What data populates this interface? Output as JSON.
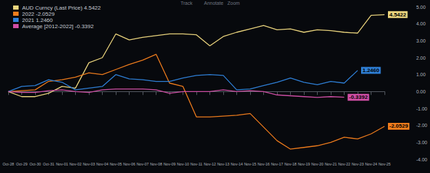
{
  "chart_data": {
    "type": "line",
    "annotations": [
      "Track",
      "Annotate",
      "Zoom"
    ],
    "categories": [
      "Oct-28",
      "Oct-29",
      "Oct-30",
      "Oct-31",
      "Nov-01",
      "Nov-02",
      "Nov-03",
      "Nov-04",
      "Nov-05",
      "Nov-06",
      "Nov-07",
      "Nov-08",
      "Nov-09",
      "Nov-10",
      "Nov-11",
      "Nov-12",
      "Nov-13",
      "Nov-14",
      "Nov-15",
      "Nov-16",
      "Nov-17",
      "Nov-18",
      "Nov-19",
      "Nov-20",
      "Nov-21",
      "Nov-22",
      "Nov-23",
      "Nov-24",
      "Nov-25"
    ],
    "series": [
      {
        "name": "AUD Curncy (Last Price) 4.5422",
        "color": "#ecd67e",
        "values": [
          0,
          -0.3,
          -0.3,
          -0.1,
          0.3,
          0.2,
          1.7,
          2.0,
          3.4,
          3.05,
          3.2,
          3.3,
          3.4,
          3.4,
          3.35,
          2.7,
          3.25,
          3.5,
          3.7,
          3.9,
          3.65,
          3.7,
          3.5,
          3.65,
          3.6,
          3.5,
          3.45,
          4.5,
          4.5422
        ],
        "value_labels": [
          null,
          null,
          null,
          null,
          null,
          null,
          null,
          null,
          null,
          null,
          null,
          null,
          null,
          null,
          null,
          null,
          null,
          null,
          null,
          null,
          null,
          null,
          null,
          null,
          null,
          null,
          null,
          null,
          "4.5422"
        ]
      },
      {
        "name": "2022 -2.0529",
        "color": "#f07d1c",
        "values": [
          0,
          0.05,
          0.1,
          0.6,
          0.7,
          0.85,
          1.1,
          1.0,
          1.3,
          1.6,
          1.85,
          2.2,
          0.5,
          0.3,
          -1.5,
          -1.5,
          -1.45,
          -1.4,
          -1.3,
          -2.1,
          -2.9,
          -3.4,
          -3.3,
          -3.2,
          -3.0,
          -2.7,
          -2.8,
          -2.5,
          -2.0529
        ],
        "value_labels": [
          null,
          null,
          null,
          null,
          null,
          null,
          null,
          null,
          null,
          null,
          null,
          null,
          null,
          null,
          null,
          null,
          null,
          null,
          null,
          null,
          null,
          null,
          null,
          null,
          null,
          null,
          null,
          null,
          "-2.0529"
        ]
      },
      {
        "name": "2021 1.2460",
        "color": "#2f80d8",
        "values": [
          0,
          0.3,
          0.35,
          0.7,
          0.55,
          0.1,
          0.2,
          0.3,
          1.0,
          0.75,
          0.7,
          0.6,
          0.6,
          0.8,
          0.95,
          1.0,
          0.95,
          0.1,
          0.15,
          0.35,
          0.55,
          0.8,
          0.55,
          0.4,
          0.6,
          0.5,
          1.246,
          null,
          null
        ],
        "value_labels": [
          null,
          null,
          null,
          null,
          null,
          null,
          null,
          null,
          null,
          null,
          null,
          null,
          null,
          null,
          null,
          null,
          null,
          null,
          null,
          null,
          null,
          null,
          null,
          null,
          null,
          null,
          "1.2460",
          null,
          null
        ]
      },
      {
        "name": "Average [2012-2022] -0.3392",
        "color": "#d14fa6",
        "values": [
          0,
          -0.05,
          -0.05,
          0.05,
          0.1,
          0.0,
          -0.05,
          0.1,
          0.15,
          0.15,
          0.15,
          0.1,
          -0.1,
          0.0,
          0.0,
          0.0,
          0.1,
          0.0,
          0.05,
          0.0,
          -0.2,
          -0.25,
          -0.3,
          -0.35,
          -0.3,
          -0.3392,
          null,
          null,
          null
        ],
        "value_labels": [
          null,
          null,
          null,
          null,
          null,
          null,
          null,
          null,
          null,
          null,
          null,
          null,
          null,
          null,
          null,
          null,
          null,
          null,
          null,
          null,
          null,
          null,
          null,
          null,
          null,
          "-0.3392",
          null,
          null,
          null
        ]
      }
    ],
    "ylim": [
      -4,
      5
    ],
    "yticks": [
      {
        "value": -4,
        "label": "-4.00"
      },
      {
        "value": -3,
        "label": "-3.00"
      },
      {
        "value": -2,
        "label": "-2.00"
      },
      {
        "value": -1,
        "label": "-1.00"
      },
      {
        "value": 0,
        "label": "0.00"
      },
      {
        "value": 1,
        "label": "1.00"
      },
      {
        "value": 2,
        "label": "2.00"
      },
      {
        "value": 3,
        "label": "3.00"
      },
      {
        "value": 4,
        "label": "4.00"
      },
      {
        "value": 5,
        "label": "5.00"
      }
    ],
    "grid": false,
    "legend": "top-left"
  }
}
